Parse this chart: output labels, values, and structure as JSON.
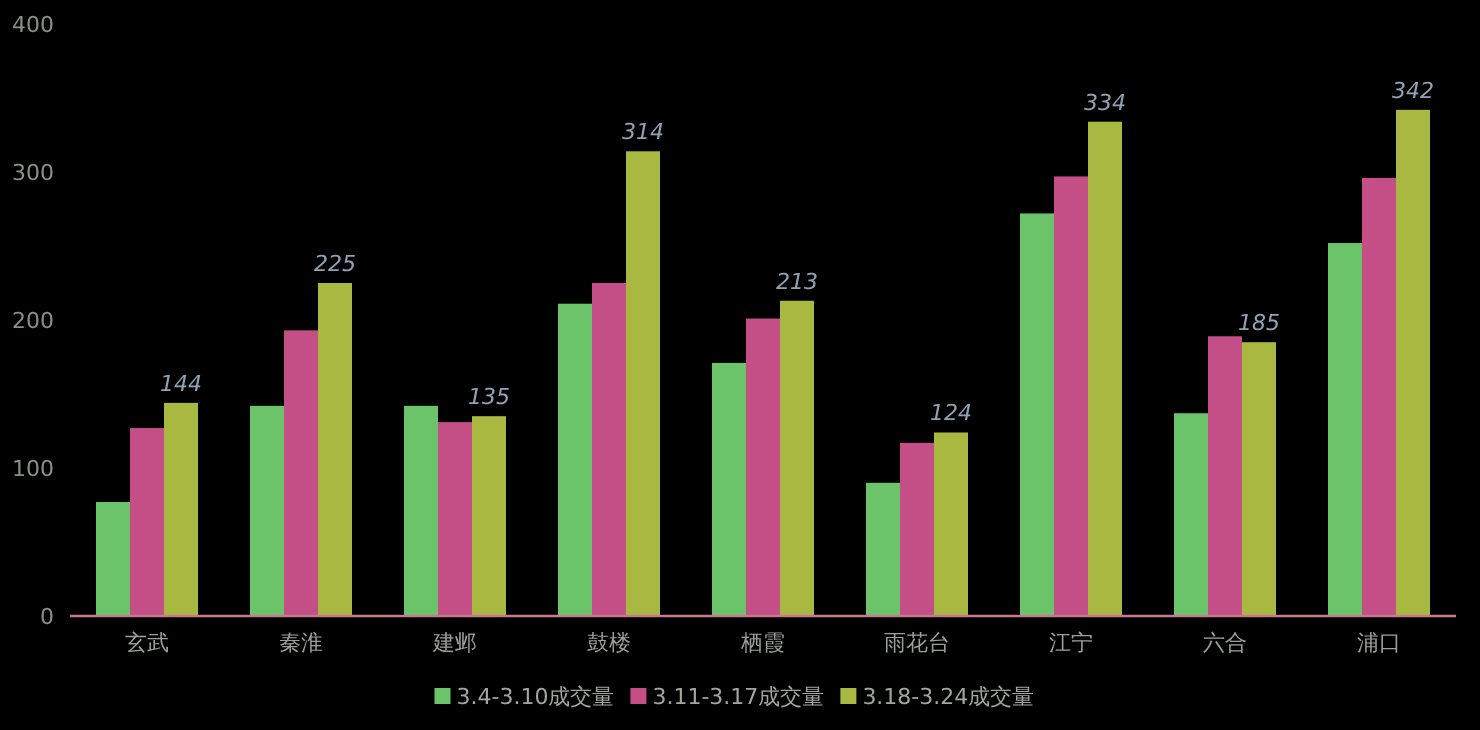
{
  "chart_data": {
    "type": "bar",
    "categories": [
      "玄武",
      "秦淮",
      "建邺",
      "鼓楼",
      "栖霞",
      "雨花台",
      "江宁",
      "六合",
      "浦口"
    ],
    "series": [
      {
        "name": "3.4-3.10成交量",
        "color": "#6cc46a",
        "values": [
          77,
          142,
          142,
          211,
          171,
          90,
          272,
          137,
          252
        ]
      },
      {
        "name": "3.11-3.17成交量",
        "color": "#c44f86",
        "values": [
          127,
          193,
          131,
          225,
          201,
          117,
          297,
          189,
          296
        ]
      },
      {
        "name": "3.18-3.24成交量",
        "color": "#a8b840",
        "values": [
          144,
          225,
          135,
          314,
          213,
          124,
          334,
          185,
          342
        ],
        "value_labels": [
          "144",
          "225",
          "135",
          "314",
          "213",
          "124",
          "334",
          "185",
          "342"
        ]
      }
    ],
    "ylim": [
      0,
      400
    ],
    "yticks": [
      0,
      100,
      200,
      300,
      400
    ],
    "grid": false,
    "legend": "bottom"
  }
}
